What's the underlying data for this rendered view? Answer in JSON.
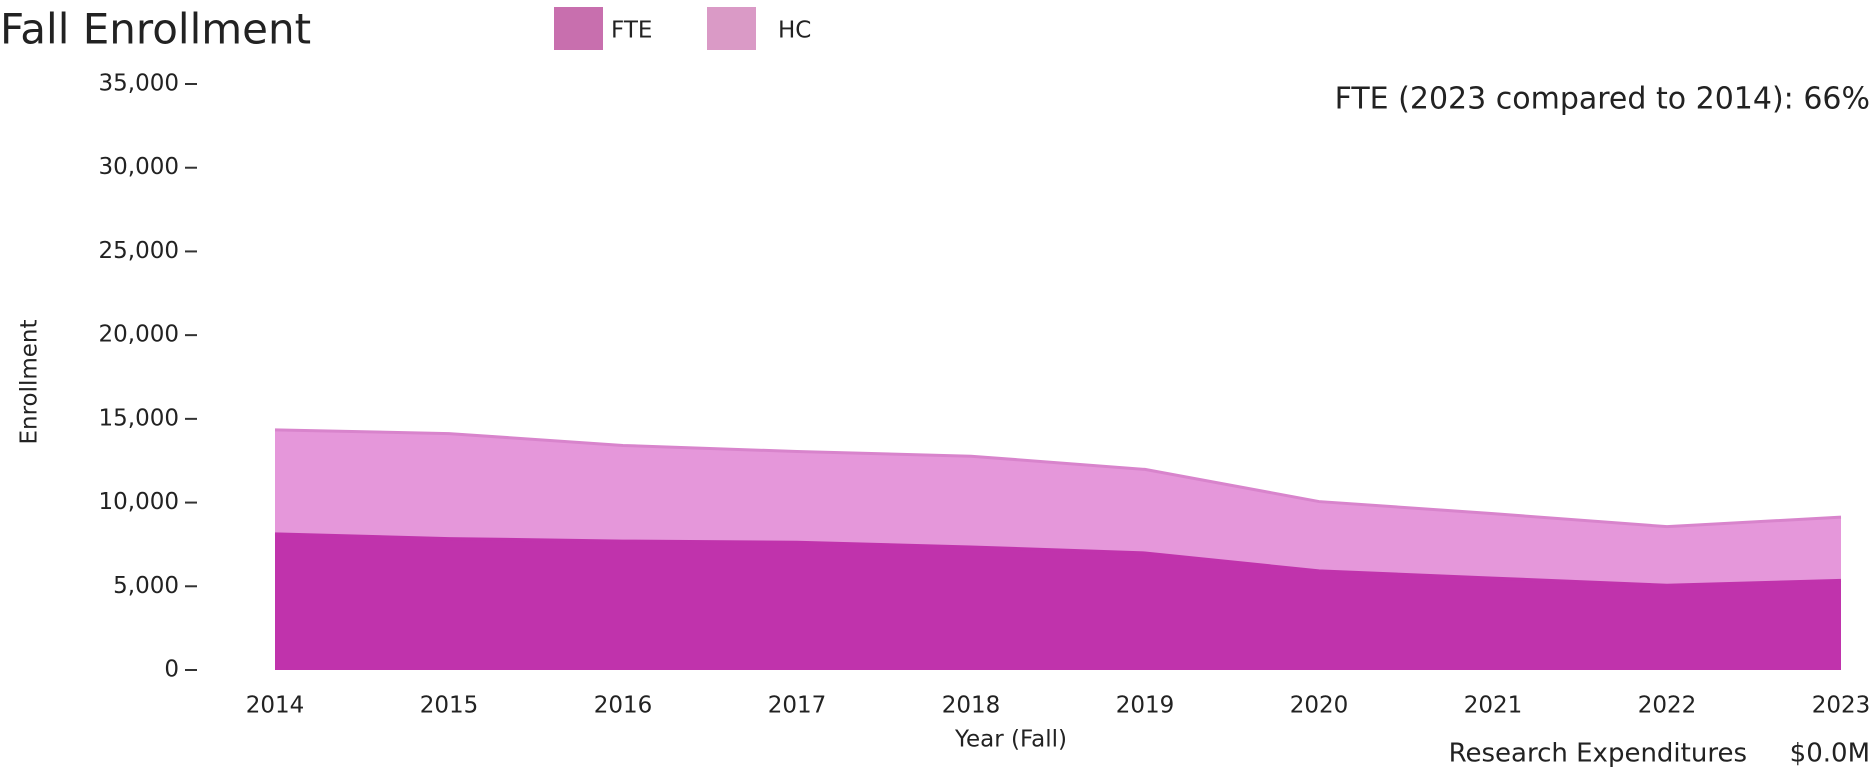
{
  "chart_data": {
    "type": "area",
    "title": "Fall Enrollment",
    "annotation": "FTE (2023 compared to 2014):  66%",
    "footer_label": "Research Expenditures",
    "footer_value": "$0.0M",
    "x_label": "Year (Fall)",
    "y_label": "Enrollment",
    "categories": [
      "2014",
      "2015",
      "2016",
      "2017",
      "2018",
      "2019",
      "2020",
      "2021",
      "2022",
      "2023"
    ],
    "series": [
      {
        "name": "HC",
        "color": "#e597da",
        "line_color": "#d884cc",
        "legend_color": "#da9ac6",
        "values": [
          14340,
          14120,
          13410,
          13050,
          12770,
          11980,
          10060,
          9340,
          8560,
          9130
        ]
      },
      {
        "name": "FTE",
        "color": "#c033ac",
        "line_color": "#c033ac",
        "legend_color": "#c86fae",
        "values": [
          8130,
          7850,
          7700,
          7630,
          7350,
          6990,
          5920,
          5490,
          5060,
          5350
        ]
      }
    ],
    "legend_order": [
      1,
      0
    ],
    "ylim": [
      0,
      35000
    ],
    "yticks": [
      {
        "value": 0,
        "label": "0"
      },
      {
        "value": 5000,
        "label": "5,000"
      },
      {
        "value": 10000,
        "label": "10,000"
      },
      {
        "value": 15000,
        "label": "15,000"
      },
      {
        "value": 20000,
        "label": "20,000"
      },
      {
        "value": 25000,
        "label": "25,000"
      },
      {
        "value": 30000,
        "label": "30,000"
      },
      {
        "value": 35000,
        "label": "35,000"
      }
    ]
  }
}
